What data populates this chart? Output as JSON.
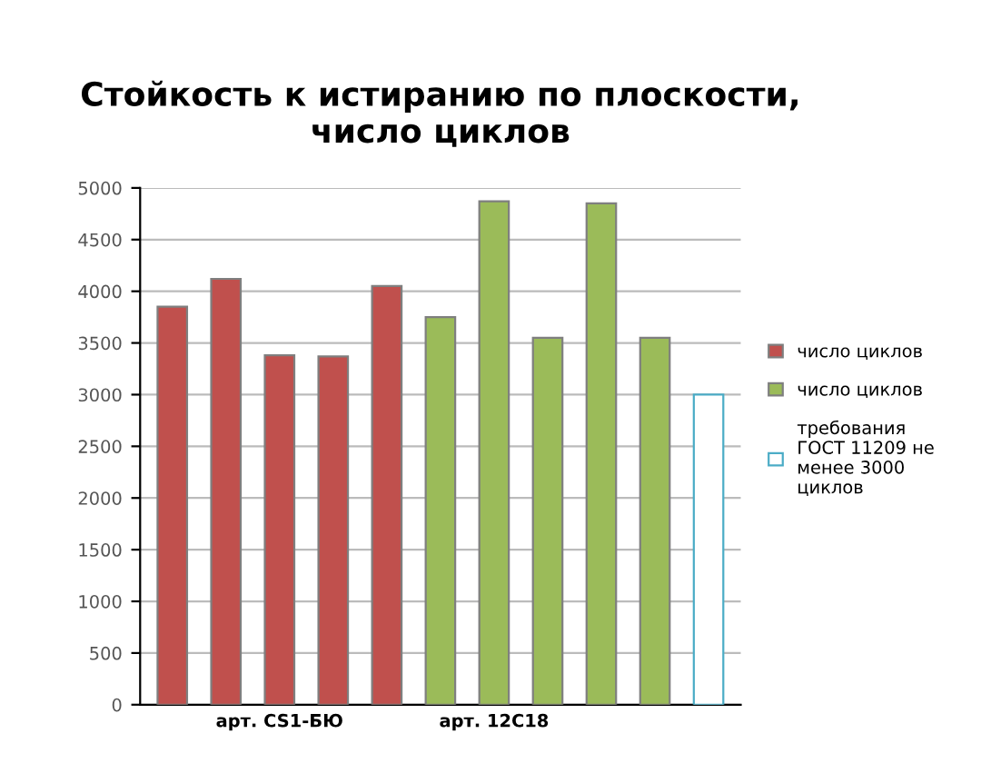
{
  "chart_data": {
    "type": "bar",
    "title": "Стойкость к истиранию по плоскости,\nчисло циклов",
    "categories": [
      null,
      null,
      "арт. CS1-БЮ",
      null,
      null,
      null,
      "арт. 12С18",
      null,
      null,
      null,
      null
    ],
    "series": [
      {
        "name": "число циклов",
        "color": "#c0504d",
        "values": [
          3850,
          4120,
          3380,
          3370,
          4050,
          null,
          null,
          null,
          null,
          null,
          null
        ]
      },
      {
        "name": "число циклов",
        "color": "#9bbb59",
        "values": [
          null,
          null,
          null,
          null,
          null,
          3750,
          4870,
          3550,
          4850,
          3550,
          null
        ]
      },
      {
        "name": "требования ГОСТ 11209 не менее 3000 циклов",
        "color": "#ffffff",
        "values": [
          null,
          null,
          null,
          null,
          null,
          null,
          null,
          null,
          null,
          null,
          3000
        ]
      }
    ],
    "ylim": [
      0,
      5000
    ],
    "yticks": [
      0,
      500,
      1000,
      1500,
      2000,
      2500,
      3000,
      3500,
      4000,
      4500,
      5000
    ],
    "grid": "y",
    "legend": "right"
  }
}
